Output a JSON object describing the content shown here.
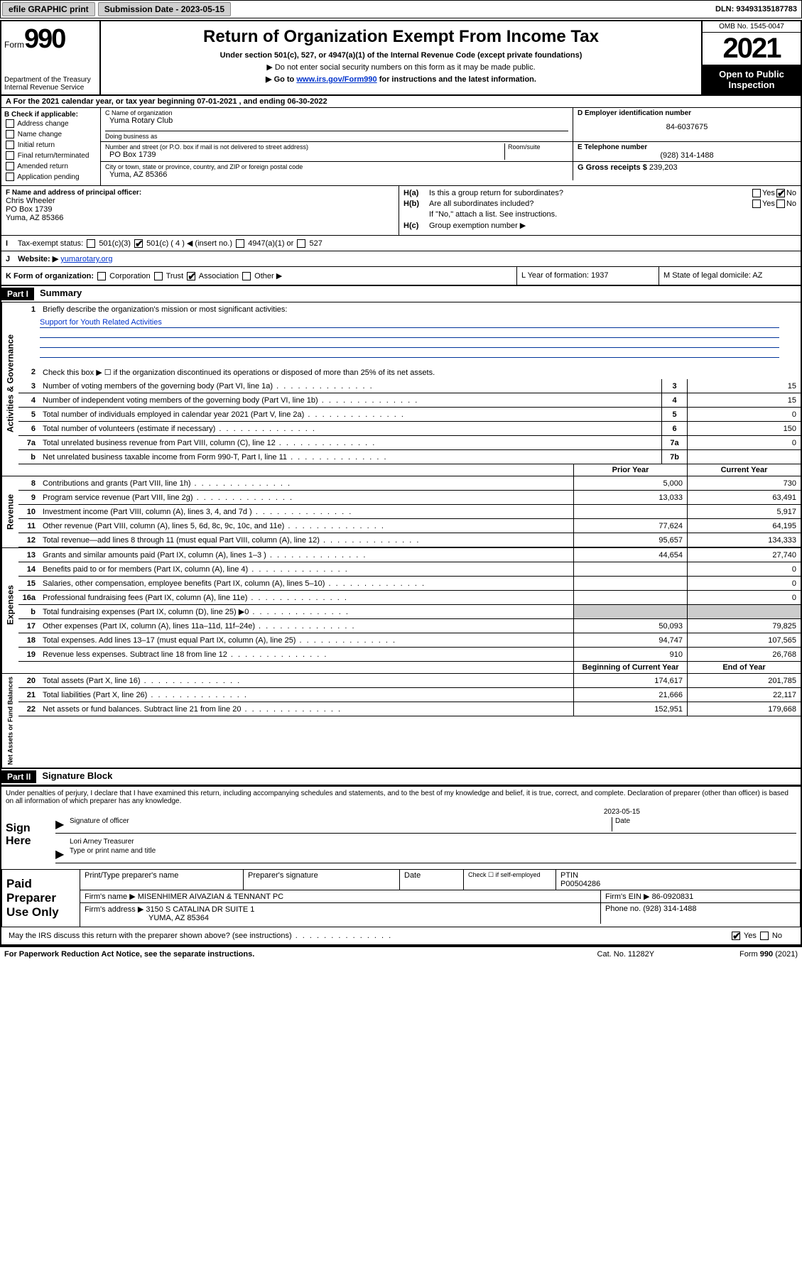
{
  "topbar": {
    "efile": "efile GRAPHIC print",
    "submission_label": "Submission Date - 2023-05-15",
    "dln": "DLN: 93493135187783"
  },
  "header": {
    "form_word": "Form",
    "form_num": "990",
    "title": "Return of Organization Exempt From Income Tax",
    "sub1": "Under section 501(c), 527, or 4947(a)(1) of the Internal Revenue Code (except private foundations)",
    "sub2": "▶ Do not enter social security numbers on this form as it may be made public.",
    "sub3_pre": "▶ Go to ",
    "sub3_link": "www.irs.gov/Form990",
    "sub3_post": " for instructions and the latest information.",
    "dept": "Department of the Treasury\nInternal Revenue Service",
    "omb": "OMB No. 1545-0047",
    "year": "2021",
    "open": "Open to Public Inspection"
  },
  "row_a": "A For the 2021 calendar year, or tax year beginning 07-01-2021   , and ending 06-30-2022",
  "col_b": {
    "hd": "B Check if applicable:",
    "items": [
      "Address change",
      "Name change",
      "Initial return",
      "Final return/terminated",
      "Amended return",
      "Application pending"
    ]
  },
  "block_c": {
    "name_lbl": "C Name of organization",
    "name": "Yuma Rotary Club",
    "dba_lbl": "Doing business as",
    "dba": "",
    "addr_lbl": "Number and street (or P.O. box if mail is not delivered to street address)",
    "room_lbl": "Room/suite",
    "addr": "PO Box 1739",
    "city_lbl": "City or town, state or province, country, and ZIP or foreign postal code",
    "city": "Yuma, AZ  85366"
  },
  "block_d": {
    "lbl": "D Employer identification number",
    "val": "84-6037675"
  },
  "block_e": {
    "lbl": "E Telephone number",
    "val": "(928) 314-1488"
  },
  "block_g": {
    "lbl": "G Gross receipts $",
    "val": "239,203"
  },
  "block_f": {
    "lbl": "F Name and address of principal officer:",
    "name": "Chris Wheeler",
    "addr1": "PO Box 1739",
    "addr2": "Yuma, AZ  85366"
  },
  "block_h": {
    "ha": "Is this a group return for subordinates?",
    "ha_yes": "Yes",
    "ha_no": "No",
    "hb": "Are all subordinates included?",
    "hb_note": "If \"No,\" attach a list. See instructions.",
    "hc": "Group exemption number ▶"
  },
  "row_i": {
    "lbl": "Tax-exempt status:",
    "opts": [
      "501(c)(3)",
      "501(c) ( 4 ) ◀ (insert no.)",
      "4947(a)(1) or",
      "527"
    ]
  },
  "row_j": {
    "lbl": "Website: ▶",
    "val": "yumarotary.org"
  },
  "row_k": {
    "k": "K Form of organization:",
    "opts": [
      "Corporation",
      "Trust",
      "Association",
      "Other ▶"
    ],
    "l": "L Year of formation: 1937",
    "m": "M State of legal domicile: AZ"
  },
  "part1": {
    "hdr": "Part I",
    "title": "Summary"
  },
  "summary": {
    "q1": "Briefly describe the organization's mission or most significant activities:",
    "mission": "Support for Youth Related Activities",
    "q2": "Check this box ▶ ☐  if the organization discontinued its operations or disposed of more than 25% of its net assets.",
    "lines_gov": [
      {
        "n": "3",
        "t": "Number of voting members of the governing body (Part VI, line 1a)",
        "box": "3",
        "v": "15"
      },
      {
        "n": "4",
        "t": "Number of independent voting members of the governing body (Part VI, line 1b)",
        "box": "4",
        "v": "15"
      },
      {
        "n": "5",
        "t": "Total number of individuals employed in calendar year 2021 (Part V, line 2a)",
        "box": "5",
        "v": "0"
      },
      {
        "n": "6",
        "t": "Total number of volunteers (estimate if necessary)",
        "box": "6",
        "v": "150"
      },
      {
        "n": "7a",
        "t": "Total unrelated business revenue from Part VIII, column (C), line 12",
        "box": "7a",
        "v": "0"
      },
      {
        "n": "b",
        "t": "Net unrelated business taxable income from Form 990-T, Part I, line 11",
        "box": "7b",
        "v": ""
      }
    ],
    "col_hdr_prior": "Prior Year",
    "col_hdr_curr": "Current Year",
    "lines_rev": [
      {
        "n": "8",
        "t": "Contributions and grants (Part VIII, line 1h)",
        "p": "5,000",
        "c": "730"
      },
      {
        "n": "9",
        "t": "Program service revenue (Part VIII, line 2g)",
        "p": "13,033",
        "c": "63,491"
      },
      {
        "n": "10",
        "t": "Investment income (Part VIII, column (A), lines 3, 4, and 7d )",
        "p": "",
        "c": "5,917"
      },
      {
        "n": "11",
        "t": "Other revenue (Part VIII, column (A), lines 5, 6d, 8c, 9c, 10c, and 11e)",
        "p": "77,624",
        "c": "64,195"
      },
      {
        "n": "12",
        "t": "Total revenue—add lines 8 through 11 (must equal Part VIII, column (A), line 12)",
        "p": "95,657",
        "c": "134,333"
      }
    ],
    "lines_exp": [
      {
        "n": "13",
        "t": "Grants and similar amounts paid (Part IX, column (A), lines 1–3 )",
        "p": "44,654",
        "c": "27,740"
      },
      {
        "n": "14",
        "t": "Benefits paid to or for members (Part IX, column (A), line 4)",
        "p": "",
        "c": "0"
      },
      {
        "n": "15",
        "t": "Salaries, other compensation, employee benefits (Part IX, column (A), lines 5–10)",
        "p": "",
        "c": "0"
      },
      {
        "n": "16a",
        "t": "Professional fundraising fees (Part IX, column (A), line 11e)",
        "p": "",
        "c": "0"
      },
      {
        "n": "b",
        "t": "Total fundraising expenses (Part IX, column (D), line 25) ▶0",
        "p": "shade",
        "c": "shade"
      },
      {
        "n": "17",
        "t": "Other expenses (Part IX, column (A), lines 11a–11d, 11f–24e)",
        "p": "50,093",
        "c": "79,825"
      },
      {
        "n": "18",
        "t": "Total expenses. Add lines 13–17 (must equal Part IX, column (A), line 25)",
        "p": "94,747",
        "c": "107,565"
      },
      {
        "n": "19",
        "t": "Revenue less expenses. Subtract line 18 from line 12",
        "p": "910",
        "c": "26,768"
      }
    ],
    "col_hdr_beg": "Beginning of Current Year",
    "col_hdr_end": "End of Year",
    "lines_net": [
      {
        "n": "20",
        "t": "Total assets (Part X, line 16)",
        "p": "174,617",
        "c": "201,785"
      },
      {
        "n": "21",
        "t": "Total liabilities (Part X, line 26)",
        "p": "21,666",
        "c": "22,117"
      },
      {
        "n": "22",
        "t": "Net assets or fund balances. Subtract line 21 from line 20",
        "p": "152,951",
        "c": "179,668"
      }
    ],
    "side_gov": "Activities & Governance",
    "side_rev": "Revenue",
    "side_exp": "Expenses",
    "side_net": "Net Assets or Fund Balances"
  },
  "part2": {
    "hdr": "Part II",
    "title": "Signature Block"
  },
  "sig": {
    "decl": "Under penalties of perjury, I declare that I have examined this return, including accompanying schedules and statements, and to the best of my knowledge and belief, it is true, correct, and complete. Declaration of preparer (other than officer) is based on all information of which preparer has any knowledge.",
    "sign_here": "Sign Here",
    "sig_officer": "Signature of officer",
    "date_lbl": "Date",
    "date": "2023-05-15",
    "officer": "Lori Arney Treasurer",
    "type_name": "Type or print name and title"
  },
  "prep": {
    "hdr": "Paid Preparer Use Only",
    "c1": "Print/Type preparer's name",
    "c2": "Preparer's signature",
    "c3": "Date",
    "c4a": "Check ☐ if self-employed",
    "c4b": "PTIN",
    "ptin": "P00504286",
    "firm_name_lbl": "Firm's name    ▶",
    "firm_name": "MISENHIMER AIVAZIAN & TENNANT PC",
    "firm_ein_lbl": "Firm's EIN ▶",
    "firm_ein": "86-0920831",
    "firm_addr_lbl": "Firm's address ▶",
    "firm_addr1": "3150 S CATALINA DR SUITE 1",
    "firm_addr2": "YUMA, AZ  85364",
    "phone_lbl": "Phone no.",
    "phone": "(928) 314-1488"
  },
  "discuss": "May the IRS discuss this return with the preparer shown above? (see instructions)",
  "footer": {
    "l": "For Paperwork Reduction Act Notice, see the separate instructions.",
    "m": "Cat. No. 11282Y",
    "r": "Form 990 (2021)"
  },
  "colors": {
    "link": "#0033cc",
    "black": "#000000",
    "shade": "#cccccc"
  }
}
